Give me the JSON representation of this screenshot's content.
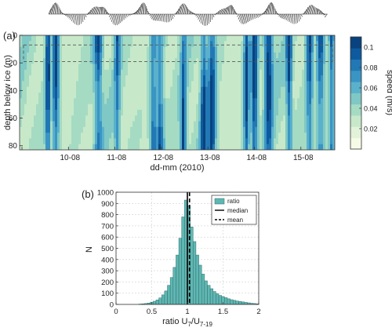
{
  "chart_data": [
    {
      "panel_label": "(a)",
      "type": "heatmap",
      "xlabel": "dd-mm (2010)",
      "ylabel": "depth below ice (m)",
      "x_tick_labels": [
        "10-08",
        "11-08",
        "12-08",
        "13-08",
        "14-08",
        "15-08"
      ],
      "y_ticks": [
        0,
        20,
        40,
        60,
        80
      ],
      "ylim": [
        83,
        0
      ],
      "colorbar": {
        "label": "speed (m/s)",
        "ticks": [
          "0.02",
          "0.04",
          "0.06",
          "0.08",
          "0.1"
        ],
        "range": [
          0.0,
          0.11
        ],
        "colors": [
          "#f5fbe6",
          "#e2f3d9",
          "#c7e9c9",
          "#a5dbc3",
          "#7fc8c5",
          "#5ab1cc",
          "#3a95c4",
          "#2278b5",
          "#0e5a9f",
          "#08437f"
        ]
      },
      "dashed_box_depth_range": [
        7,
        19
      ],
      "high_speed_time_fraction_centers": [
        0.09,
        0.115,
        0.25,
        0.31,
        0.425,
        0.445,
        0.52,
        0.585,
        0.61,
        0.72,
        0.745,
        0.79,
        0.855,
        0.92,
        0.955,
        0.99
      ],
      "wind_vector_strip": true
    },
    {
      "panel_label": "(b)",
      "type": "bar",
      "xlabel_main": "ratio U",
      "xlabel_sub1": "7",
      "xlabel_sep": "/U",
      "xlabel_sub2": "7-19",
      "ylabel": "N",
      "xlim": [
        0,
        2
      ],
      "ylim": [
        0,
        1000
      ],
      "x_ticks": [
        "0",
        "0.5",
        "1",
        "1.5",
        "2"
      ],
      "y_ticks": [
        "0",
        "100",
        "200",
        "300",
        "400",
        "500",
        "600",
        "700",
        "800",
        "900",
        "1000"
      ],
      "bin_width": 0.04,
      "bin_starts": [
        0.32,
        0.36,
        0.4,
        0.44,
        0.48,
        0.52,
        0.56,
        0.6,
        0.64,
        0.68,
        0.72,
        0.76,
        0.8,
        0.84,
        0.88,
        0.92,
        0.96,
        1.0,
        1.04,
        1.08,
        1.12,
        1.16,
        1.2,
        1.24,
        1.28,
        1.32,
        1.36,
        1.4,
        1.44,
        1.48,
        1.52,
        1.56,
        1.6,
        1.64,
        1.68,
        1.72,
        1.76,
        1.8,
        1.84,
        1.88,
        1.92,
        1.96
      ],
      "values": [
        3,
        5,
        8,
        12,
        20,
        28,
        40,
        58,
        85,
        120,
        170,
        240,
        330,
        440,
        590,
        780,
        930,
        880,
        690,
        560,
        440,
        350,
        270,
        210,
        170,
        140,
        115,
        95,
        80,
        70,
        60,
        50,
        42,
        36,
        30,
        26,
        22,
        18,
        14,
        10,
        8,
        5
      ],
      "median": 1.0,
      "mean": 1.03,
      "legend": {
        "position": "top-right",
        "entries": [
          {
            "label": "ratio",
            "style": "bar",
            "color": "#5fb7b3"
          },
          {
            "label": "median",
            "style": "solid",
            "color": "#000000"
          },
          {
            "label": "mean",
            "style": "dashed",
            "color": "#000000"
          }
        ]
      },
      "grid": true
    }
  ]
}
